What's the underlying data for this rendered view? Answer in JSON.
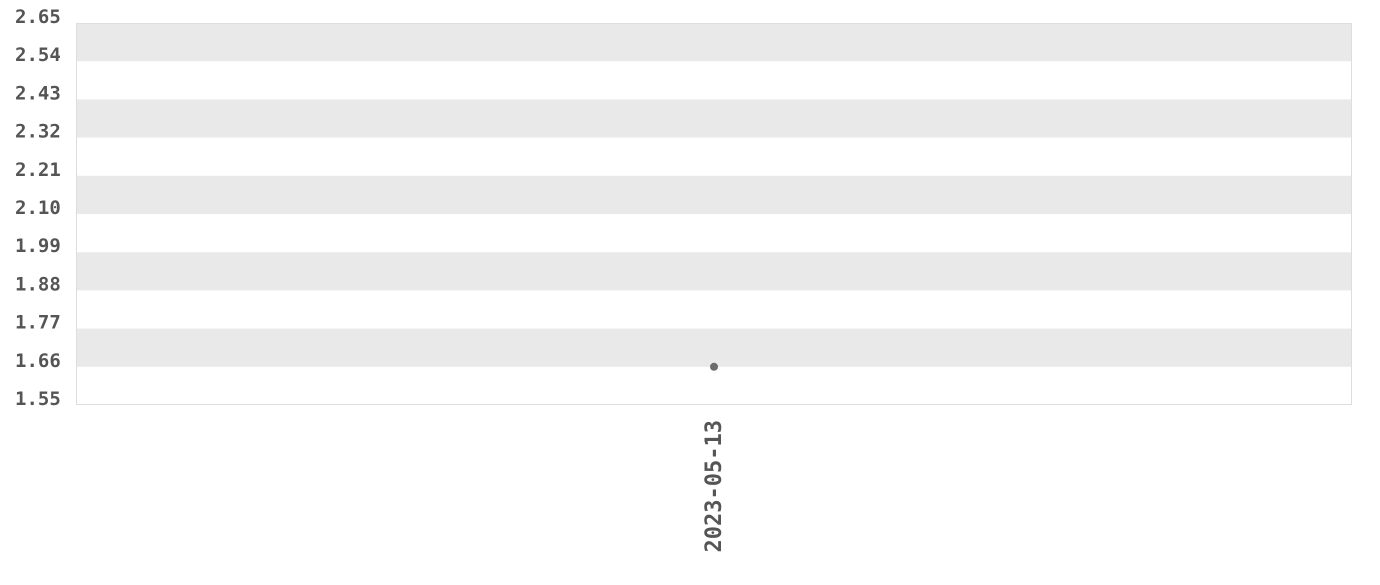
{
  "chart_data": {
    "type": "scatter",
    "title": "",
    "xlabel": "",
    "ylabel": "",
    "x_tick_labels": [
      "2023-05-13"
    ],
    "y_tick_labels": [
      "2.65",
      "2.54",
      "2.43",
      "2.32",
      "2.21",
      "2.10",
      "1.99",
      "1.88",
      "1.77",
      "1.66",
      "1.55"
    ],
    "ylim": [
      1.55,
      2.65
    ],
    "grid": "alternating horizontal bands",
    "series": [
      {
        "points": [
          {
            "x": "2023-05-13",
            "y": 1.66
          }
        ]
      }
    ],
    "colors": {
      "band": "#e9e9e9",
      "point": "#6b6b6b",
      "text": "#555555",
      "border": "#dddddd"
    }
  }
}
